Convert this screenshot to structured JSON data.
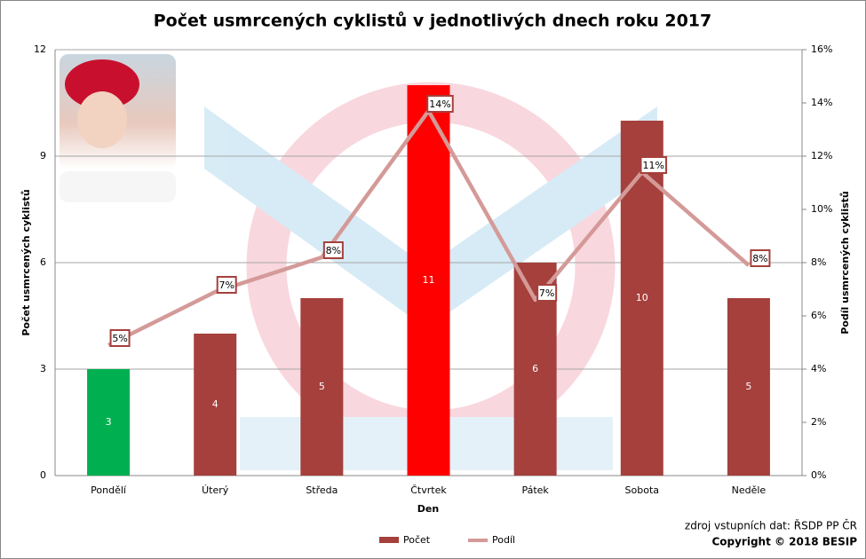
{
  "chart_data": {
    "type": "combo",
    "title": "Počet usmrcených cyklistů v jednotlivých dnech roku 2017",
    "x_label": "Den",
    "y_label": "Počet usmrcených cyklistů",
    "y2_label": "Podíl usmrcených cyklistů",
    "source": "zdroj vstupních dat: ŘSDP PP ČR",
    "copyright": "Copyright © 2018 BESIP",
    "categories": [
      "Pondělí",
      "Úterý",
      "Středa",
      "Čtvrtek",
      "Pátek",
      "Sobota",
      "Neděle"
    ],
    "series": [
      {
        "name": "Počet",
        "type": "bar",
        "color": "#a5403c",
        "colors": [
          "#00b050",
          "#a5403c",
          "#a5403c",
          "#ff0000",
          "#a5403c",
          "#a5403c",
          "#a5403c"
        ],
        "values": [
          3,
          4,
          5,
          11,
          6,
          10,
          5
        ]
      },
      {
        "name": "Podíl",
        "type": "line",
        "axis": "y2",
        "color": "#d49a98",
        "values": [
          4.9,
          6.9,
          8.2,
          13.7,
          6.6,
          11.4,
          7.9
        ],
        "value_labels": [
          "5%",
          "7%",
          "8%",
          "14%",
          "7%",
          "11%",
          "8%"
        ]
      }
    ],
    "ylim": [
      0,
      12
    ],
    "yticks": [
      0,
      3,
      6,
      9,
      12
    ],
    "y2lim": [
      0,
      16
    ],
    "y2ticks": [
      {
        "value": 0,
        "label": "0%"
      },
      {
        "value": 2,
        "label": "2%"
      },
      {
        "value": 4,
        "label": "4%"
      },
      {
        "value": 6,
        "label": "6%"
      },
      {
        "value": 8,
        "label": "8%"
      },
      {
        "value": 10,
        "label": "10%"
      },
      {
        "value": 12,
        "label": "12%"
      },
      {
        "value": 14,
        "label": "14%"
      },
      {
        "value": 16,
        "label": "16%"
      }
    ],
    "grid": true,
    "legend": "bottom"
  }
}
